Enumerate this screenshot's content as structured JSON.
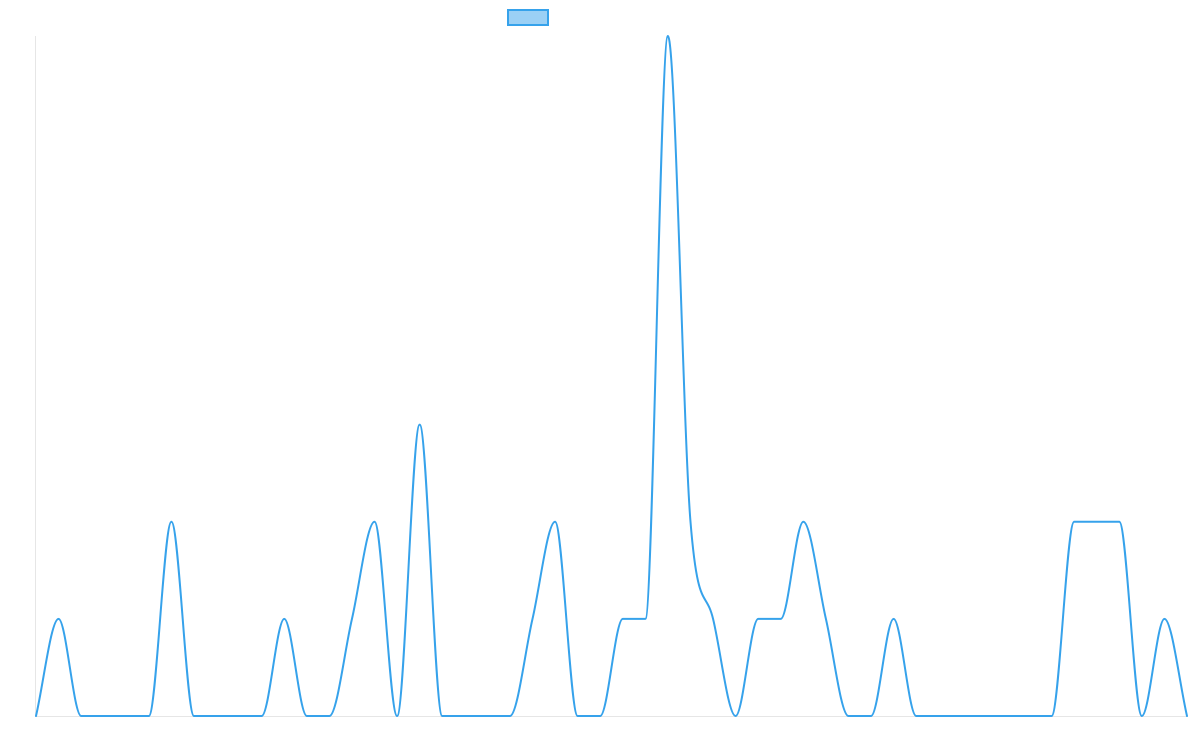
{
  "chart_data": {
    "type": "line",
    "title": "",
    "xlabel": "",
    "ylabel": "",
    "grid": false,
    "legend": "top-center",
    "x": [
      0,
      1,
      2,
      3,
      4,
      5,
      6,
      7,
      8,
      9,
      10,
      11,
      12,
      13,
      14,
      15,
      16,
      17,
      18,
      19,
      20,
      21,
      22,
      23,
      24,
      25,
      26,
      27,
      28,
      29,
      30,
      31,
      32,
      33,
      34,
      35,
      36,
      37,
      38,
      39,
      40,
      41,
      42,
      43,
      44,
      45,
      46,
      47,
      48,
      49,
      50,
      51
    ],
    "ylim": [
      0,
      7
    ],
    "series": [
      {
        "name": "",
        "color": "#36a2eb",
        "fill": "#9bd0f5",
        "values": [
          0,
          1,
          0,
          0,
          0,
          0,
          2,
          0,
          0,
          0,
          0,
          1,
          0,
          0,
          1,
          2,
          0,
          3,
          0,
          0,
          0,
          0,
          1,
          2,
          0,
          0,
          1,
          1,
          7,
          2,
          1,
          0,
          1,
          1,
          2,
          1,
          0,
          0,
          1,
          0,
          0,
          0,
          0,
          0,
          0,
          0,
          2,
          2,
          2,
          0,
          1,
          0
        ]
      }
    ]
  }
}
